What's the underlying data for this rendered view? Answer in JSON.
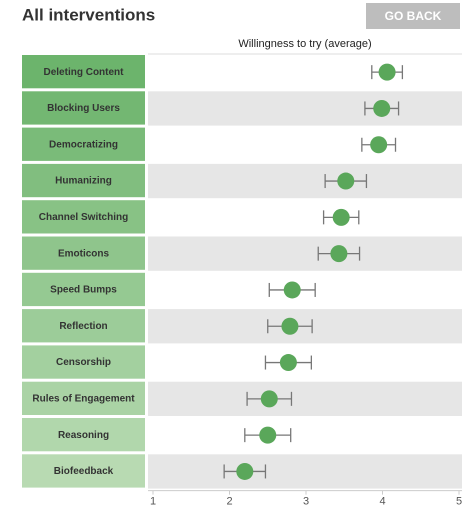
{
  "header": {
    "title": "All interventions",
    "button": "GO BACK"
  },
  "chart_data": {
    "type": "dotplot",
    "x_label": "Willingness to try (average)",
    "categories": [
      "Deleting Content",
      "Blocking Users",
      "Democratizing",
      "Humanizing",
      "Channel Switching",
      "Emoticons",
      "Speed Bumps",
      "Reflection",
      "Censorship",
      "Rules of Engagement",
      "Reasoning",
      "Biofeedback"
    ],
    "values": [
      4.06,
      3.99,
      3.95,
      3.52,
      3.46,
      3.43,
      2.82,
      2.79,
      2.77,
      2.52,
      2.5,
      2.2
    ],
    "errors": [
      0.2,
      0.22,
      0.22,
      0.27,
      0.23,
      0.27,
      0.3,
      0.29,
      0.3,
      0.29,
      0.3,
      0.27
    ],
    "color": "#5aa75a",
    "xlim": [
      1,
      5
    ],
    "xticks": [
      1,
      2,
      3,
      4,
      5
    ]
  }
}
